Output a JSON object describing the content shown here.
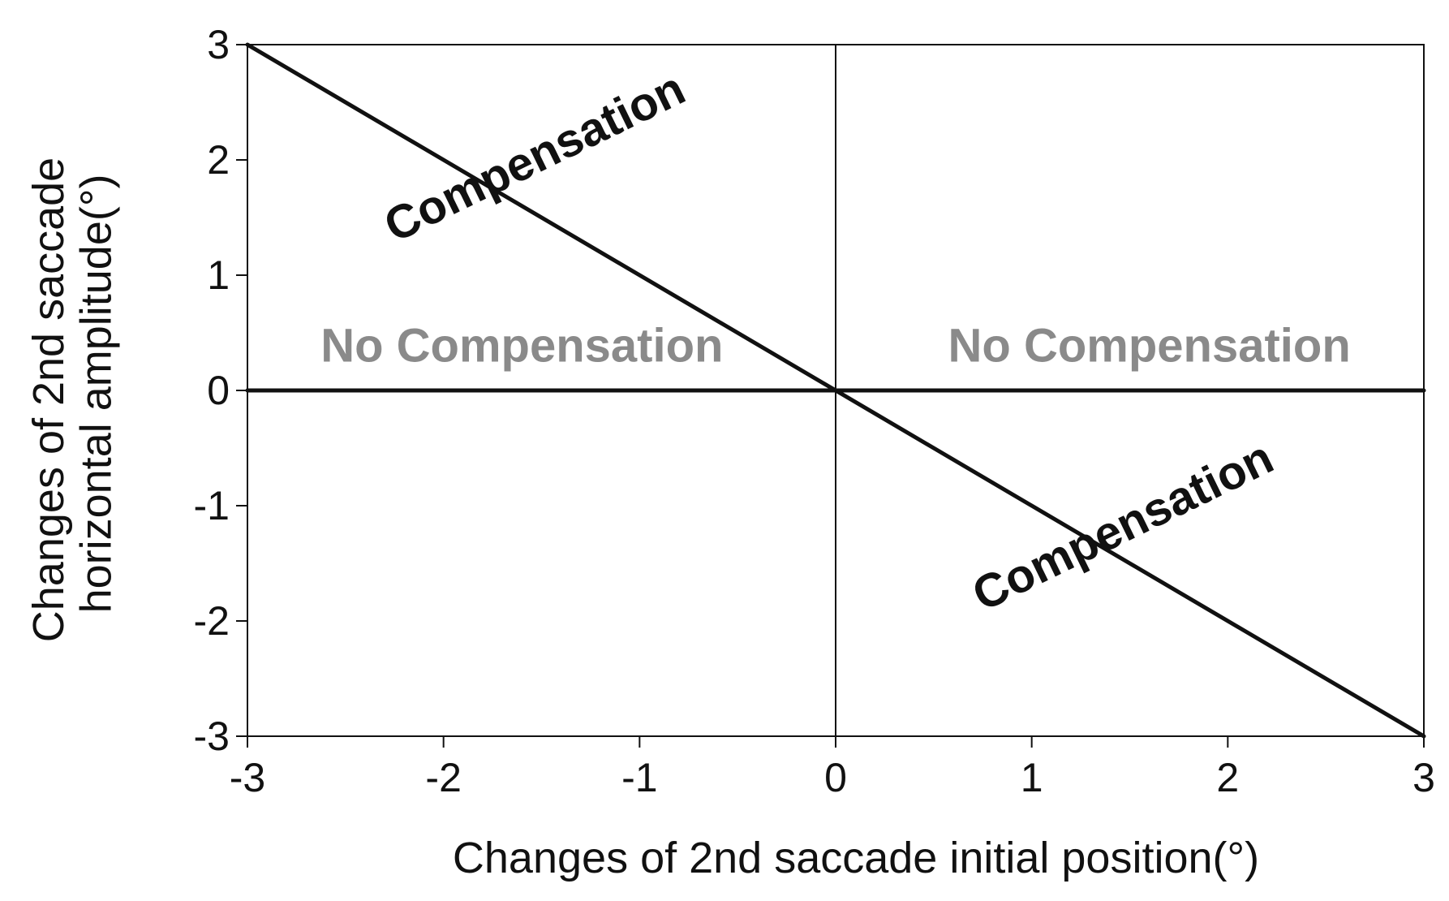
{
  "chart_data": {
    "type": "line",
    "title": "",
    "xlabel": "Changes of 2nd saccade initial position(°)",
    "ylabel": [
      "Changes of 2nd saccade",
      "horizontal amplitude(°)"
    ],
    "xlim": [
      -3,
      3
    ],
    "ylim": [
      -3,
      3
    ],
    "xticks": [
      -3,
      -2,
      -1,
      0,
      1,
      2,
      3
    ],
    "yticks": [
      3,
      2,
      1,
      0,
      -1,
      -2,
      -3
    ],
    "grid": false,
    "reference_lines": {
      "x": 0
    },
    "series": [
      {
        "x": [
          -3,
          3
        ],
        "y": [
          3,
          -3
        ],
        "color": "#111111"
      },
      {
        "x": [
          -3,
          3
        ],
        "y": [
          0,
          0
        ],
        "color": "#111111"
      }
    ],
    "annotations": [
      {
        "text": "Compensation",
        "x": -1.5,
        "y": 1.9,
        "color": "#111111",
        "style": "bold",
        "angle": -26
      },
      {
        "text": "Compensation",
        "x": 1.5,
        "y": -1.3,
        "color": "#111111",
        "style": "bold",
        "angle": -26
      },
      {
        "text": "No Compensation",
        "x": -1.6,
        "y": 0.25,
        "color": "#8a8a8a",
        "style": "bold",
        "angle": 0
      },
      {
        "text": "No Compensation",
        "x": 1.6,
        "y": 0.25,
        "color": "#8a8a8a",
        "style": "bold",
        "angle": 0
      }
    ]
  }
}
